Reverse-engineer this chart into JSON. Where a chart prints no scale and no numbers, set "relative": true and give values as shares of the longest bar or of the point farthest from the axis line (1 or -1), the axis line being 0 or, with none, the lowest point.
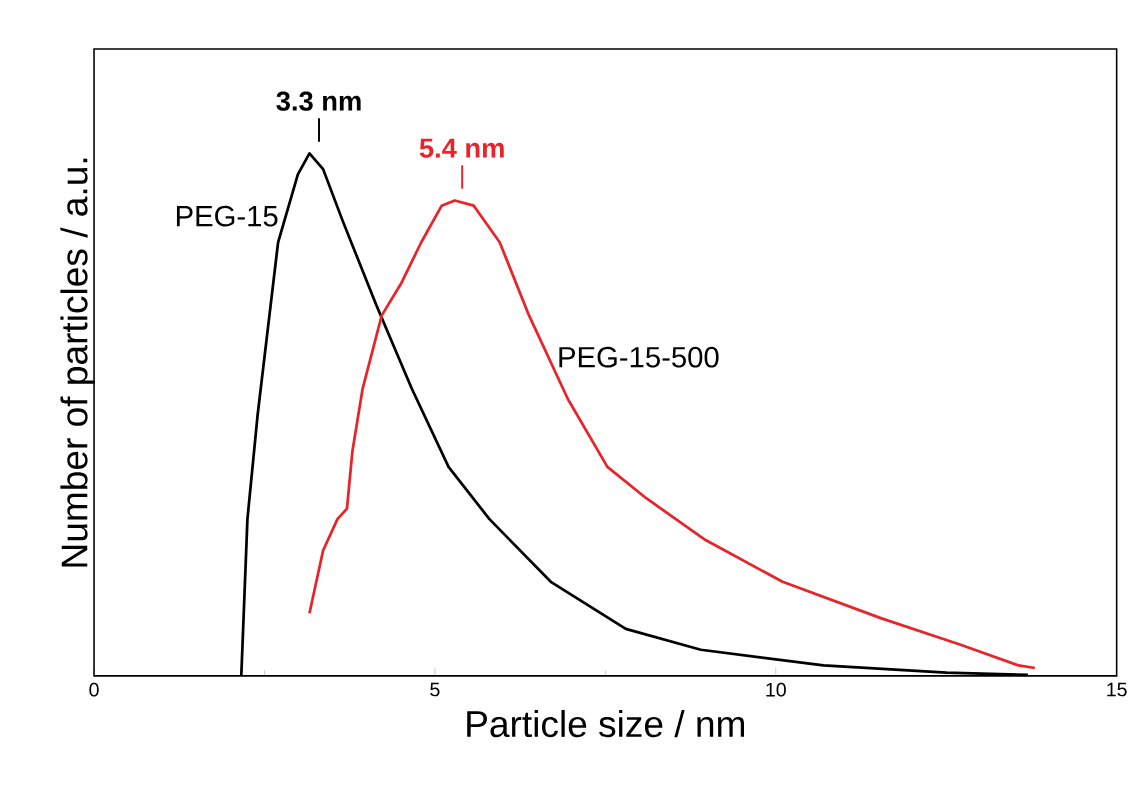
{
  "chart_data": {
    "type": "line",
    "relative": true,
    "xlabel": "Particle size / nm",
    "ylabel": "Number of particles / a.u.",
    "xlim": [
      0,
      15
    ],
    "xticks": [
      0,
      5,
      10,
      15
    ],
    "grid": false,
    "marker": "none",
    "line_style": "solid",
    "series": [
      {
        "name": "PEG-15",
        "color": "#000000",
        "x": [
          2.16,
          2.25,
          2.4,
          2.7,
          2.99,
          3.16,
          3.36,
          3.65,
          4.14,
          4.66,
          5.2,
          5.8,
          6.7,
          7.8,
          8.9,
          10.7,
          12.5,
          13.7
        ],
        "values": [
          0,
          0.3,
          0.5,
          0.83,
          0.96,
          1.0,
          0.97,
          0.87,
          0.71,
          0.55,
          0.4,
          0.3,
          0.18,
          0.09,
          0.05,
          0.02,
          0.006,
          0.002
        ]
      },
      {
        "name": "PEG-15-500",
        "color": "#e8242a",
        "x": [
          3.16,
          3.36,
          3.57,
          3.71,
          3.79,
          3.94,
          4.22,
          4.5,
          4.8,
          5.1,
          5.29,
          5.57,
          5.95,
          6.38,
          6.95,
          7.53,
          8.1,
          8.97,
          10.1,
          11.55,
          12.7,
          13.56,
          13.8
        ],
        "values": [
          0.12,
          0.24,
          0.3,
          0.32,
          0.43,
          0.55,
          0.69,
          0.75,
          0.83,
          0.9,
          0.91,
          0.9,
          0.83,
          0.69,
          0.53,
          0.4,
          0.34,
          0.26,
          0.18,
          0.11,
          0.06,
          0.02,
          0.015
        ]
      }
    ],
    "annotations": [
      {
        "text": "3.3 nm",
        "x": 3.3,
        "y": 1.0
      },
      {
        "text": "5.4 nm",
        "x": 5.4,
        "y": 0.91
      }
    ]
  }
}
